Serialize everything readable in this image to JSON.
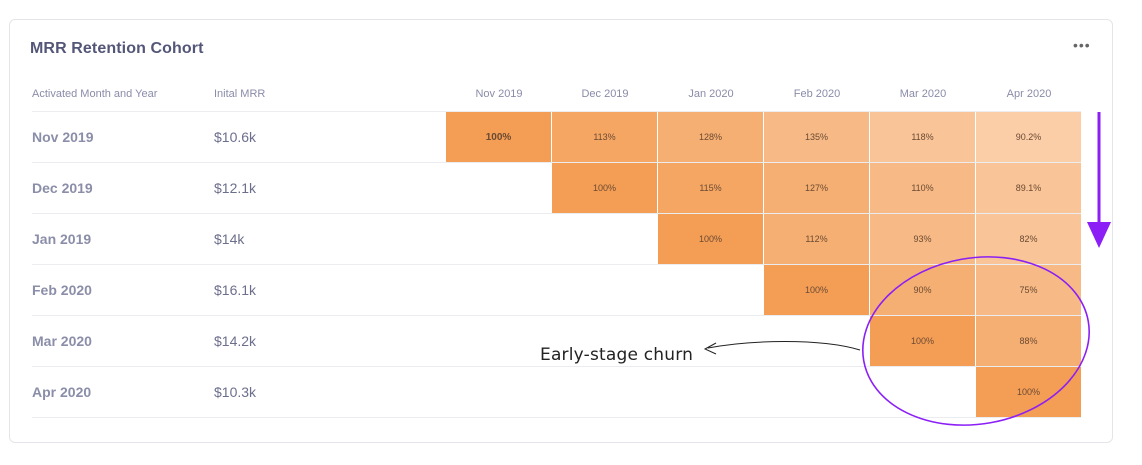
{
  "card": {
    "title": "MRR Retention Cohort",
    "menu_label": "•••"
  },
  "headers": {
    "cohort": "Activated Month and Year",
    "mrr": "Inital MRR"
  },
  "annotation": {
    "text": "Early-stage churn",
    "arrow_color": "#8b1ff5"
  },
  "chart_data": {
    "type": "heatmap",
    "title": "MRR Retention Cohort",
    "columns": [
      "Nov 2019",
      "Dec 2019",
      "Jan 2020",
      "Feb 2020",
      "Mar 2020",
      "Apr 2020"
    ],
    "rows": [
      {
        "label": "Nov 2019",
        "mrr": "$10.6k",
        "start": 0,
        "values": [
          100,
          113,
          128,
          135,
          118,
          90.2
        ],
        "labels": [
          "100%",
          "113%",
          "128%",
          "135%",
          "118%",
          "90.2%"
        ]
      },
      {
        "label": "Dec 2019",
        "mrr": "$12.1k",
        "start": 1,
        "values": [
          100,
          115,
          127,
          110,
          89.1
        ],
        "labels": [
          "100%",
          "115%",
          "127%",
          "110%",
          "89.1%"
        ]
      },
      {
        "label": "Jan 2019",
        "mrr": "$14k",
        "start": 2,
        "values": [
          100,
          112,
          93,
          82
        ],
        "labels": [
          "100%",
          "112%",
          "93%",
          "82%"
        ]
      },
      {
        "label": "Feb 2020",
        "mrr": "$16.1k",
        "start": 3,
        "values": [
          100,
          90,
          75
        ],
        "labels": [
          "100%",
          "90%",
          "75%"
        ]
      },
      {
        "label": "Mar 2020",
        "mrr": "$14.2k",
        "start": 4,
        "values": [
          100,
          88
        ],
        "labels": [
          "100%",
          "88%"
        ]
      },
      {
        "label": "Apr 2020",
        "mrr": "$10.3k",
        "start": 5,
        "values": [
          100
        ],
        "labels": [
          "100%"
        ]
      }
    ],
    "colors": [
      "#f49d55",
      "#f5a96c",
      "#f6b37e",
      "#f8bf92",
      "#fbcfa8"
    ]
  }
}
